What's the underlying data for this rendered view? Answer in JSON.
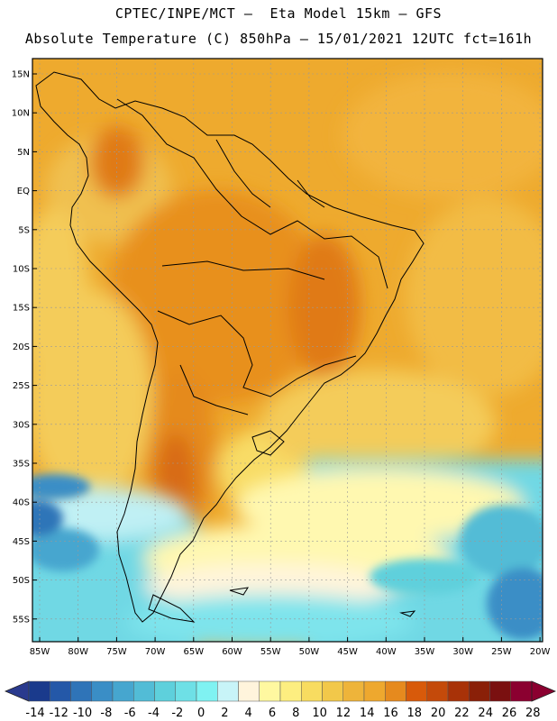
{
  "header": {
    "line1": "CPTEC/INPE/MCT –  Eta Model 15km – GFS",
    "line2": "Absolute Temperature (C) 850hPa – 15/01/2021 12UTC fct=161h"
  },
  "map": {
    "lat_labels": [
      "15N",
      "10N",
      "5N",
      "EQ",
      "5S",
      "10S",
      "15S",
      "20S",
      "25S",
      "30S",
      "35S",
      "40S",
      "45S",
      "50S",
      "55S"
    ],
    "lon_labels": [
      "85W",
      "80W",
      "75W",
      "70W",
      "65W",
      "60W",
      "55W",
      "50W",
      "45W",
      "40W",
      "35W",
      "30W",
      "25W",
      "20W"
    ]
  },
  "colorbar": {
    "labels": [
      "-14",
      "-12",
      "-10",
      "-8",
      "-6",
      "-4",
      "-2",
      "0",
      "2",
      "4",
      "6",
      "8",
      "10",
      "12",
      "14",
      "16",
      "18",
      "20",
      "22",
      "24",
      "26",
      "28"
    ],
    "colors": [
      "#1a3a8c",
      "#2458a8",
      "#2f74b8",
      "#3a8ec6",
      "#46a6cf",
      "#52bcd6",
      "#5ed0dc",
      "#6ee0e6",
      "#7ff2f2",
      "#c8f4f8",
      "#fff4dc",
      "#fff8a0",
      "#fdee80",
      "#f8dc60",
      "#f2c84a",
      "#eeb43a",
      "#eea82e",
      "#e68a1e",
      "#d85a0a",
      "#c44a0a",
      "#a83208",
      "#8a2008",
      "#7a1010",
      "#8b0030"
    ],
    "low_arrow_color": "#2a3a8e",
    "high_arrow_color": "#8b0030"
  }
}
